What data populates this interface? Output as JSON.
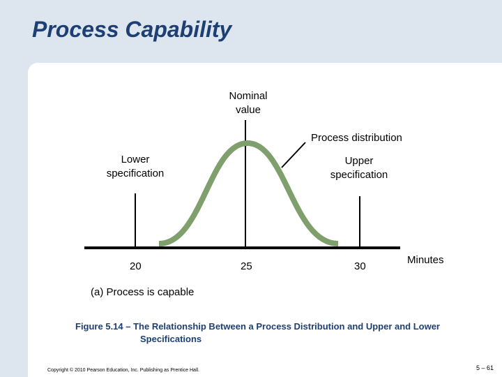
{
  "title": "Process Capability",
  "labels": {
    "nominal": [
      "Nominal",
      "value"
    ],
    "distribution": "Process distribution",
    "lower_spec": [
      "Lower",
      "specification"
    ],
    "upper_spec": [
      "Upper",
      "specification"
    ],
    "axis_unit": "Minutes",
    "case": "(a)  Process is capable"
  },
  "axis_ticks": [
    "20",
    "25",
    "30"
  ],
  "figure_caption": {
    "line1": "Figure 5.14 –  The Relationship Between a Process Distribution and Upper and Lower",
    "line2": "Specifications"
  },
  "footer": {
    "copyright": "Copyright © 2010 Pearson Education, Inc. Publishing as Prentice Hall.",
    "page": "5 – 61"
  },
  "colors": {
    "title": "#1d3f73",
    "background": "#dde6ee",
    "curve": "#7f9f6c"
  }
}
